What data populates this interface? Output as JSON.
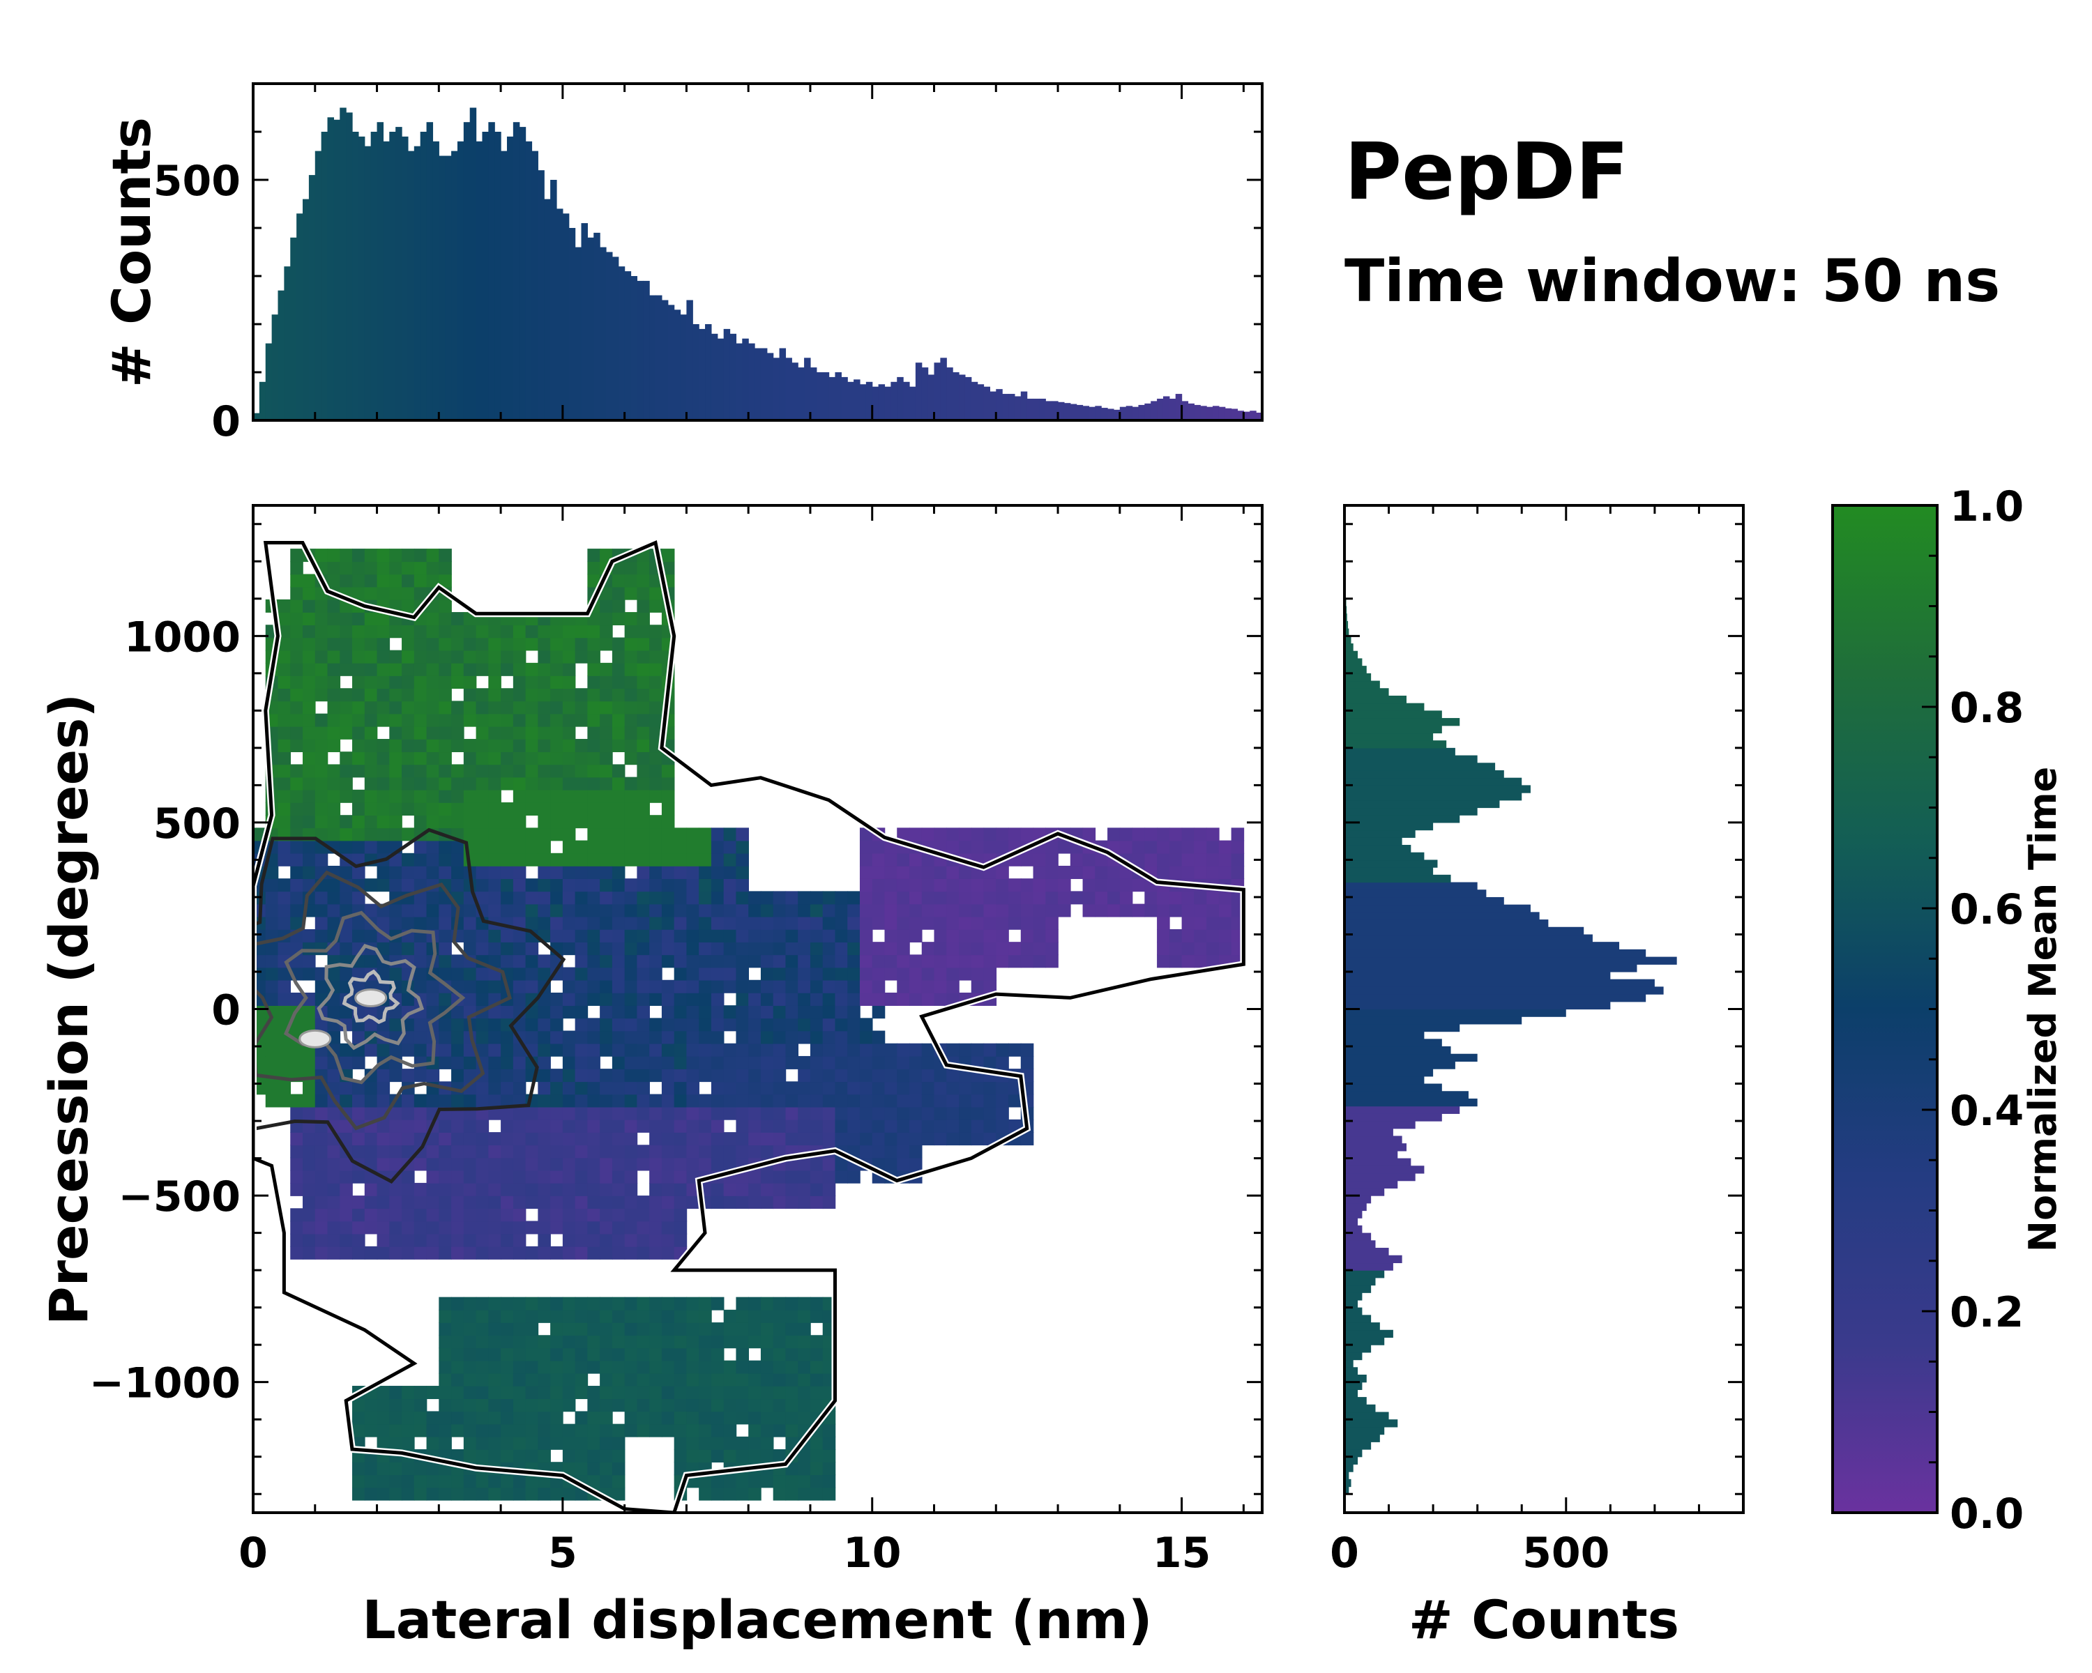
{
  "title": "PepDF",
  "subtitle": "Time window: 50 ns",
  "colors": {
    "purple": "#6a329f",
    "blue": "#243c82",
    "navy": "#0c3f6a",
    "teal": "#135e55",
    "green": "#228b22"
  },
  "chart_data": [
    {
      "name": "top-histogram",
      "type": "bar",
      "xlim": [
        0,
        16.3
      ],
      "ylim": [
        0,
        700
      ],
      "ylabel": "# Counts",
      "yticks": [
        {
          "v": 0,
          "label": "0"
        },
        {
          "v": 500,
          "label": "500"
        }
      ],
      "x_start": 0.05,
      "bin_width": 0.1,
      "values": [
        15,
        80,
        160,
        220,
        270,
        320,
        380,
        430,
        460,
        510,
        560,
        600,
        630,
        625,
        650,
        640,
        600,
        590,
        570,
        600,
        620,
        580,
        600,
        610,
        590,
        560,
        570,
        600,
        620,
        580,
        550,
        550,
        560,
        580,
        620,
        650,
        580,
        600,
        620,
        600,
        560,
        590,
        620,
        610,
        580,
        560,
        520,
        460,
        500,
        440,
        430,
        400,
        360,
        410,
        380,
        390,
        360,
        350,
        340,
        320,
        310,
        300,
        290,
        290,
        260,
        260,
        250,
        240,
        230,
        220,
        250,
        200,
        190,
        200,
        180,
        170,
        190,
        180,
        160,
        170,
        160,
        150,
        150,
        140,
        130,
        150,
        130,
        120,
        110,
        130,
        110,
        100,
        100,
        90,
        100,
        90,
        80,
        85,
        75,
        80,
        70,
        75,
        70,
        80,
        90,
        80,
        70,
        120,
        110,
        95,
        120,
        130,
        110,
        100,
        95,
        90,
        80,
        75,
        70,
        60,
        65,
        55,
        55,
        50,
        60,
        45,
        45,
        45,
        40,
        40,
        38,
        36,
        34,
        32,
        30,
        28,
        30,
        26,
        24,
        22,
        28,
        30,
        28,
        32,
        35,
        40,
        45,
        50,
        45,
        55,
        40,
        35,
        32,
        30,
        28,
        30,
        28,
        25,
        24,
        20,
        18,
        20,
        16,
        15,
        14,
        13,
        12,
        11,
        12,
        10,
        9,
        10,
        8,
        9,
        8,
        10,
        14,
        12,
        10,
        8,
        7,
        6,
        8,
        7,
        6,
        5,
        6,
        5
      ],
      "bar_colors": [
        "#153f6a",
        "#135e55",
        "#0c3f6a"
      ]
    },
    {
      "name": "heatmap",
      "type": "heatmap",
      "xlim": [
        0,
        16.3
      ],
      "ylim": [
        -1350,
        1350
      ],
      "xlabel": "Lateral displacement (nm)",
      "ylabel": "Precession (degrees)",
      "xticks": [
        {
          "v": 0,
          "label": "0"
        },
        {
          "v": 5,
          "label": "5"
        },
        {
          "v": 10,
          "label": "10"
        },
        {
          "v": 15,
          "label": "15"
        }
      ],
      "yticks": [
        {
          "v": -1000,
          "label": "−1000"
        },
        {
          "v": -500,
          "label": "−500"
        },
        {
          "v": 0,
          "label": "0"
        },
        {
          "v": 500,
          "label": "500"
        },
        {
          "v": 1000,
          "label": "1000"
        }
      ],
      "cmap": [
        "#6a329f",
        "#3a3a8c",
        "#243c82",
        "#0c3f6a",
        "#135e55",
        "#1f6e3a",
        "#228b22"
      ],
      "regions": [
        {
          "label": "upper-left cluster",
          "x": [
            0.3,
            6.8
          ],
          "y": [
            450,
            1250
          ],
          "value": 0.85
        },
        {
          "label": "upper-middle band",
          "x": [
            4,
            10
          ],
          "y": [
            200,
            650
          ],
          "value": 0.35
        },
        {
          "label": "right arm",
          "x": [
            10,
            16
          ],
          "y": [
            0,
            480
          ],
          "value": 0.05
        },
        {
          "label": "core",
          "x": [
            0,
            8
          ],
          "y": [
            -300,
            300
          ],
          "value": 0.45
        },
        {
          "label": "lower band",
          "x": [
            0.5,
            9
          ],
          "y": [
            -650,
            -250
          ],
          "value": 0.15
        },
        {
          "label": "lower-right arm",
          "x": [
            7,
            12.5
          ],
          "y": [
            -450,
            -100
          ],
          "value": 0.35
        },
        {
          "label": "bottom cluster",
          "x": [
            1.5,
            9.5
          ],
          "y": [
            -1300,
            -750
          ],
          "value": 0.65
        }
      ],
      "hotspots": [
        {
          "x": 1.9,
          "y": 30,
          "label": "peak"
        },
        {
          "x": 1.0,
          "y": -80,
          "label": "secondary"
        }
      ]
    },
    {
      "name": "right-histogram",
      "type": "bar",
      "orientation": "horizontal",
      "ylim": [
        -1350,
        1350
      ],
      "xlim": [
        0,
        900
      ],
      "xlabel": "# Counts",
      "xticks": [
        {
          "v": 0,
          "label": "0"
        },
        {
          "v": 500,
          "label": "500"
        }
      ],
      "y_start": -1300,
      "bin_width": 20,
      "values": [
        10,
        15,
        10,
        20,
        30,
        40,
        60,
        80,
        90,
        120,
        100,
        70,
        50,
        30,
        40,
        50,
        30,
        20,
        40,
        60,
        90,
        110,
        80,
        60,
        40,
        30,
        40,
        60,
        70,
        90,
        110,
        130,
        100,
        70,
        60,
        40,
        30,
        40,
        50,
        60,
        90,
        120,
        160,
        180,
        150,
        120,
        140,
        130,
        110,
        160,
        220,
        260,
        300,
        280,
        220,
        180,
        200,
        250,
        300,
        240,
        220,
        180,
        260,
        400,
        500,
        600,
        680,
        720,
        700,
        600,
        660,
        750,
        680,
        620,
        560,
        540,
        460,
        440,
        420,
        360,
        320,
        300,
        240,
        200,
        210,
        180,
        150,
        130,
        160,
        200,
        260,
        300,
        350,
        400,
        420,
        400,
        360,
        340,
        300,
        250,
        230,
        200,
        220,
        260,
        220,
        180,
        140,
        100,
        80,
        60,
        50,
        40,
        30,
        20,
        15,
        10,
        8,
        6,
        5,
        4
      ],
      "bar_colors": [
        "#135e55",
        "#243c82",
        "#6a329f"
      ]
    },
    {
      "name": "colorbar",
      "type": "colorbar",
      "label": "Normalized Mean Time",
      "range": [
        0,
        1
      ],
      "ticks": [
        {
          "v": 0,
          "label": "0.0"
        },
        {
          "v": 0.2,
          "label": "0.2"
        },
        {
          "v": 0.4,
          "label": "0.4"
        },
        {
          "v": 0.6,
          "label": "0.6"
        },
        {
          "v": 0.8,
          "label": "0.8"
        },
        {
          "v": 1,
          "label": "1.0"
        }
      ],
      "stops": [
        "#6a329f",
        "#3a3a8c",
        "#243c82",
        "#0c3f6a",
        "#135e55",
        "#1f6e3a",
        "#228b22"
      ]
    }
  ]
}
